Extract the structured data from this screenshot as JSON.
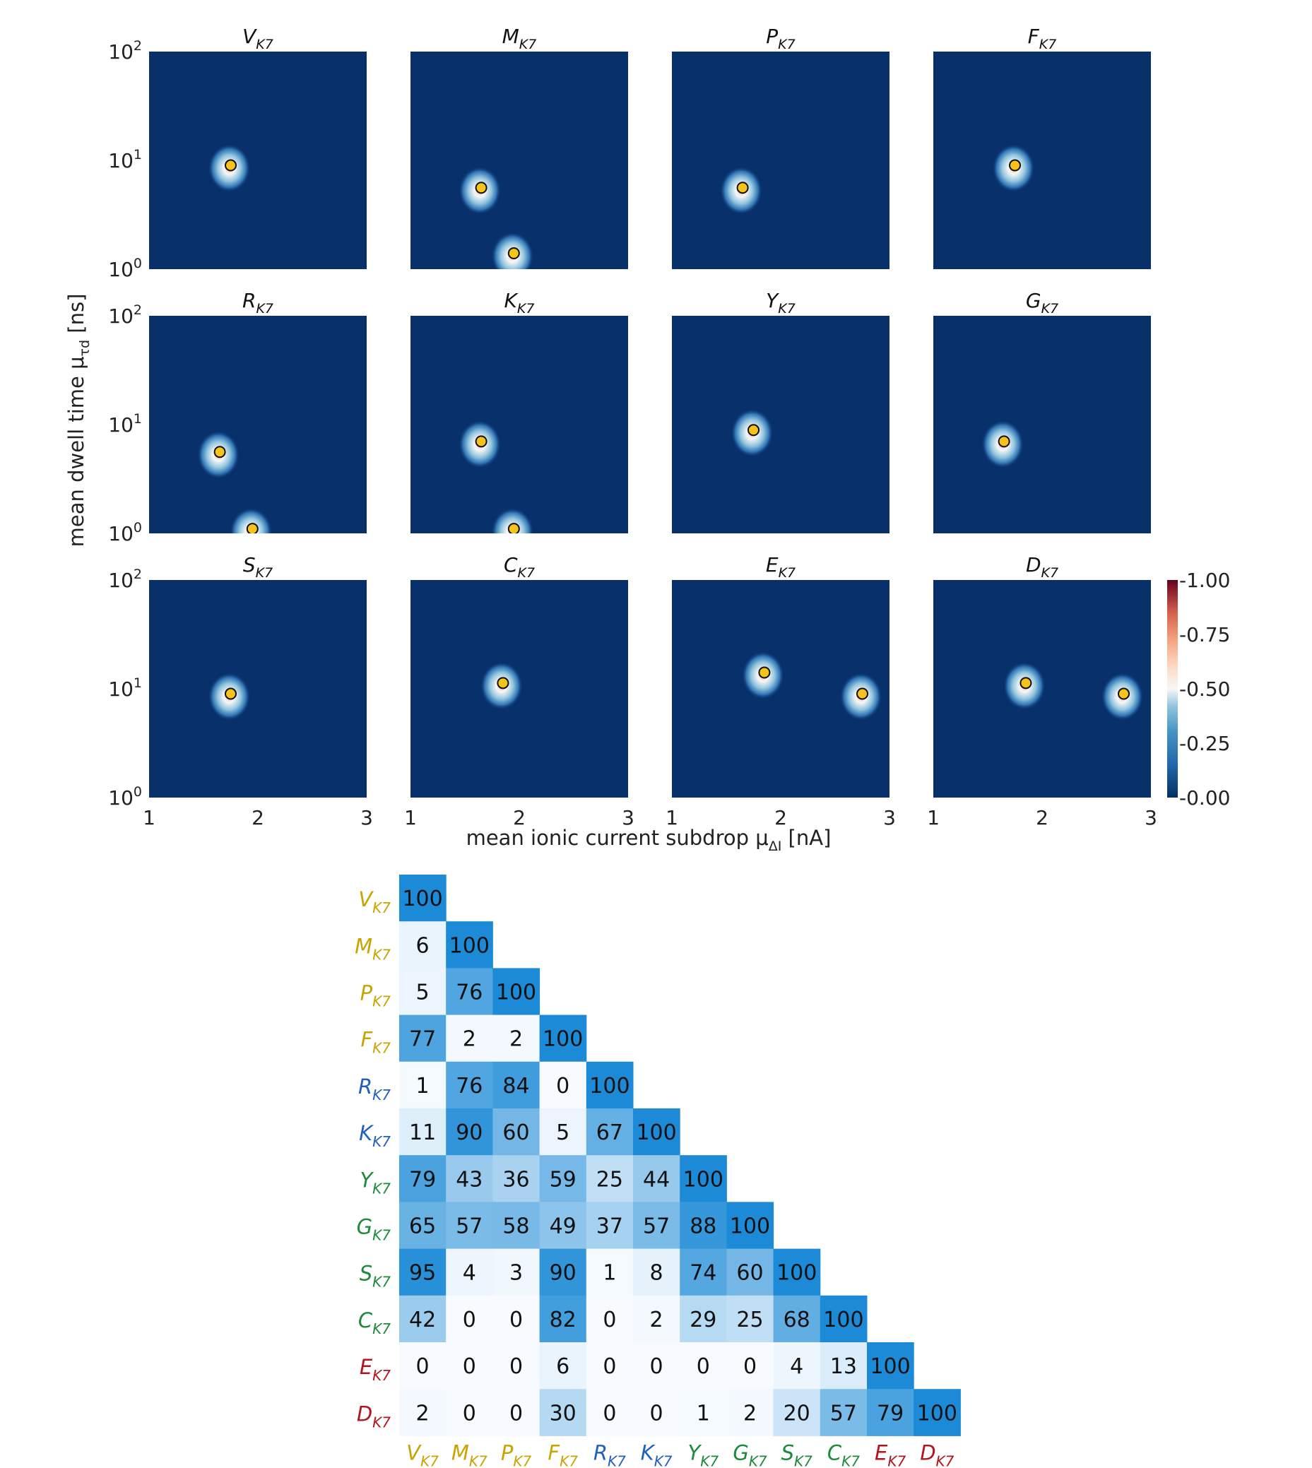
{
  "colors": {
    "background": "#08306b",
    "marker_fill": "#f6c21c",
    "group_yellow": "#c9a400",
    "group_blue": "#1f5fbf",
    "group_green": "#1b8a3a",
    "group_red": "#b3141b"
  },
  "chart_data": [
    {
      "type": "heatmap",
      "description_type": "density grid of 12 panels",
      "xlabel": "mean ionic current subdrop μ",
      "xlabel_sub": "ΔI",
      "xlabel_unit": " [nA]",
      "ylabel": "mean dwell time μ",
      "ylabel_sub": "τd",
      "ylabel_unit": " [ns]",
      "xlim": [
        1,
        3
      ],
      "ylim_log10": [
        0,
        2
      ],
      "x_ticks": [
        "1",
        "2",
        "3"
      ],
      "y_tick_exponents": [
        "2",
        "1",
        "0"
      ],
      "y_tick_base": "10",
      "yscale": "log",
      "colorbar": {
        "min": 0,
        "max": 1,
        "ticks": [
          "-1.00",
          "-0.75",
          "-0.50",
          "-0.25",
          "-0.00"
        ]
      },
      "panels": [
        {
          "name": "V",
          "sub": "K7",
          "peaks": [
            {
              "x": 1.75,
              "y": 9.0
            }
          ]
        },
        {
          "name": "M",
          "sub": "K7",
          "peaks": [
            {
              "x": 1.65,
              "y": 5.6
            },
            {
              "x": 1.95,
              "y": 1.4
            }
          ]
        },
        {
          "name": "P",
          "sub": "K7",
          "peaks": [
            {
              "x": 1.65,
              "y": 5.6
            }
          ]
        },
        {
          "name": "F",
          "sub": "K7",
          "peaks": [
            {
              "x": 1.75,
              "y": 9.0
            }
          ]
        },
        {
          "name": "R",
          "sub": "K7",
          "peaks": [
            {
              "x": 1.65,
              "y": 5.6
            },
            {
              "x": 1.95,
              "y": 1.1
            }
          ]
        },
        {
          "name": "K",
          "sub": "K7",
          "peaks": [
            {
              "x": 1.65,
              "y": 7.0
            },
            {
              "x": 1.95,
              "y": 1.1
            }
          ]
        },
        {
          "name": "Y",
          "sub": "K7",
          "peaks": [
            {
              "x": 1.75,
              "y": 8.9
            }
          ]
        },
        {
          "name": "G",
          "sub": "K7",
          "peaks": [
            {
              "x": 1.65,
              "y": 7.0
            }
          ]
        },
        {
          "name": "S",
          "sub": "K7",
          "peaks": [
            {
              "x": 1.75,
              "y": 9.0
            }
          ]
        },
        {
          "name": "C",
          "sub": "K7",
          "peaks": [
            {
              "x": 1.85,
              "y": 11.3
            }
          ]
        },
        {
          "name": "E",
          "sub": "K7",
          "peaks": [
            {
              "x": 1.85,
              "y": 14.1
            },
            {
              "x": 2.75,
              "y": 9.0
            }
          ]
        },
        {
          "name": "D",
          "sub": "K7",
          "peaks": [
            {
              "x": 1.85,
              "y": 11.3
            },
            {
              "x": 2.75,
              "y": 9.0
            }
          ]
        }
      ]
    },
    {
      "type": "heatmap",
      "description_type": "lower-triangular similarity matrix",
      "labels": [
        {
          "name": "V",
          "sub": "K7",
          "group": "yellow"
        },
        {
          "name": "M",
          "sub": "K7",
          "group": "yellow"
        },
        {
          "name": "P",
          "sub": "K7",
          "group": "yellow"
        },
        {
          "name": "F",
          "sub": "K7",
          "group": "yellow"
        },
        {
          "name": "R",
          "sub": "K7",
          "group": "blue"
        },
        {
          "name": "K",
          "sub": "K7",
          "group": "blue"
        },
        {
          "name": "Y",
          "sub": "K7",
          "group": "green"
        },
        {
          "name": "G",
          "sub": "K7",
          "group": "green"
        },
        {
          "name": "S",
          "sub": "K7",
          "group": "green"
        },
        {
          "name": "C",
          "sub": "K7",
          "group": "green"
        },
        {
          "name": "E",
          "sub": "K7",
          "group": "red"
        },
        {
          "name": "D",
          "sub": "K7",
          "group": "red"
        }
      ],
      "values": [
        [
          100
        ],
        [
          6,
          100
        ],
        [
          5,
          76,
          100
        ],
        [
          77,
          2,
          2,
          100
        ],
        [
          1,
          76,
          84,
          0,
          100
        ],
        [
          11,
          90,
          60,
          5,
          67,
          100
        ],
        [
          79,
          43,
          36,
          59,
          25,
          44,
          100
        ],
        [
          65,
          57,
          58,
          49,
          37,
          57,
          88,
          100
        ],
        [
          95,
          4,
          3,
          90,
          1,
          8,
          74,
          60,
          100
        ],
        [
          42,
          0,
          0,
          82,
          0,
          2,
          29,
          25,
          68,
          100
        ],
        [
          0,
          0,
          0,
          6,
          0,
          0,
          0,
          0,
          4,
          13,
          100
        ],
        [
          2,
          0,
          0,
          30,
          0,
          0,
          1,
          2,
          20,
          57,
          79,
          100
        ]
      ]
    }
  ]
}
